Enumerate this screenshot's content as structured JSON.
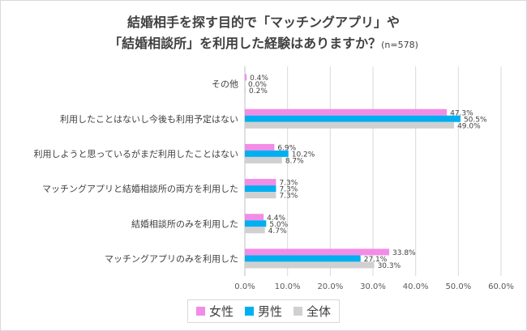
{
  "title": {
    "line1": "結婚相手を探す目的で「マッチングアプリ」や",
    "line2": "「結婚相談所」を利用した経験はありますか？",
    "note": "(n=578)"
  },
  "colors": {
    "female": "#f28ce6",
    "male": "#00aff0",
    "total": "#d0d0d0"
  },
  "legend": [
    {
      "label": "女性",
      "color": "#f28ce6"
    },
    {
      "label": "男性",
      "color": "#00aff0"
    },
    {
      "label": "全体",
      "color": "#d0d0d0"
    }
  ],
  "chart_data": {
    "type": "bar",
    "orientation": "horizontal",
    "categories": [
      "その他",
      "利用したことはないし今後も利用予定はない",
      "利用しようと思っているがまだ利用したことはない",
      "マッチングアプリと結婚相談所の両方を利用した",
      "結婚相談所のみを利用した",
      "マッチングアプリのみを利用した"
    ],
    "series": [
      {
        "name": "女性",
        "values": [
          0.4,
          47.3,
          6.9,
          7.3,
          4.4,
          33.8
        ],
        "labels": [
          "0.4%",
          "47.3%",
          "6.9%",
          "7.3%",
          "4.4%",
          "33.8%"
        ]
      },
      {
        "name": "男性",
        "values": [
          0.0,
          50.5,
          10.2,
          7.3,
          5.0,
          27.1
        ],
        "labels": [
          "0.0%",
          "50.5%",
          "10.2%",
          "7.3%",
          "5.0%",
          "27.1%"
        ]
      },
      {
        "name": "全体",
        "values": [
          0.2,
          49.0,
          8.7,
          7.3,
          4.7,
          30.3
        ],
        "labels": [
          "0.2%",
          "49.0%",
          "8.7%",
          "7.3%",
          "4.7%",
          "30.3%"
        ]
      }
    ],
    "xticks": [
      "0.0%",
      "10.0%",
      "20.0%",
      "30.0%",
      "40.0%",
      "50.0%",
      "60.0%"
    ],
    "xlim": [
      0,
      60
    ],
    "grid": true,
    "legend_position": "bottom"
  }
}
